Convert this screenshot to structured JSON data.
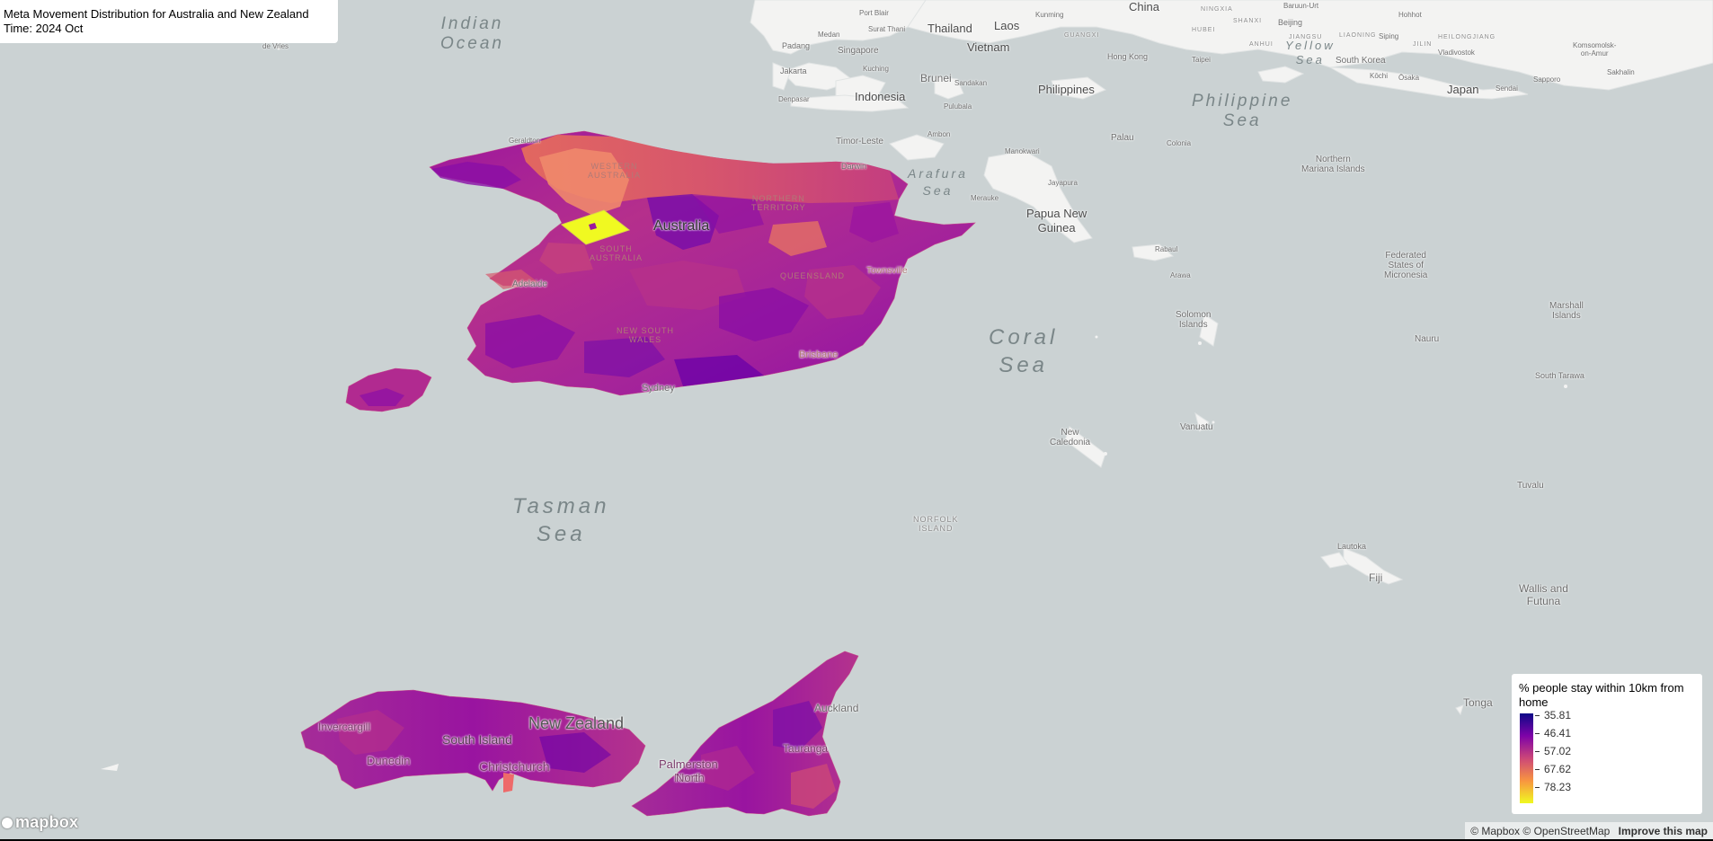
{
  "title_box": {
    "title": "Meta Movement Distribution for Australia and New Zealand",
    "time": "Time: 2024 Oct"
  },
  "legend": {
    "title": "% people stay within 10km from home",
    "ticks": [
      "35.81",
      "46.41",
      "57.02",
      "67.62",
      "78.23"
    ],
    "colors": [
      "#0d0887",
      "#7e03a8",
      "#cc4778",
      "#f89540",
      "#f0f921"
    ]
  },
  "map_labels": {
    "seas": {
      "indian_ocean": "Indian\nOcean",
      "tasman_sea": "Tasman\nSea",
      "coral_sea": "Coral\nSea",
      "philippine_sea": "Philippine\nSea",
      "arafura_sea": "Arafura\nSea",
      "yellow_sea": "Yellow\nSea"
    },
    "countries": {
      "australia": "Australia",
      "new_zealand": "New Zealand",
      "papua_new_guinea": "Papua New\nGuinea",
      "indonesia": "Indonesia",
      "philippines": "Philippines",
      "vietnam": "Vietnam",
      "thailand": "Thailand",
      "laos": "Laos",
      "china": "China",
      "japan": "Japan",
      "south_korea": "South Korea",
      "brunei": "Brunei",
      "singapore": "Singapore",
      "timor_leste": "Timor-Leste",
      "palau": "Palau",
      "northern_mariana": "Northern\nMariana Islands",
      "micronesia": "Federated\nStates of\nMicronesia",
      "marshall": "Marshall\nIslands",
      "nauru": "Nauru",
      "solomon": "Solomon\nIslands",
      "vanuatu": "Vanuatu",
      "new_caledonia": "New\nCaledonia",
      "fiji": "Fiji",
      "tuvalu": "Tuvalu",
      "tonga": "Tonga",
      "wallis": "Wallis and\nFutuna",
      "south_tarawa": "South Tarawa",
      "norfolk": "NORFOLK\nISLAND"
    },
    "cities": {
      "sydney": "Sydney",
      "brisbane": "Brisbane",
      "adelaide": "Adelaide",
      "darwin": "Darwin",
      "townsville": "Townsville",
      "auckland": "Auckland",
      "christchurch": "Christchurch",
      "dunedin": "Dunedin",
      "invercargill": "Invercargill",
      "tauranga": "Tauranga",
      "palmerston_north": "Palmerston\nNorth",
      "hong_kong": "Hong Kong",
      "beijing": "Beijing",
      "jakarta": "Jakarta",
      "kuching": "Kuching",
      "medan": "Medan",
      "padang": "Padang",
      "denpasar": "Denpasar",
      "kunming": "Kunming",
      "manila_region": "Sandakan",
      "ambon": "Ambon",
      "jayapura": "Jayapura",
      "merauke": "Merauke",
      "rabaul": "Rabaul",
      "lautoka": "Lautoka",
      "sapporo": "Sapporo",
      "osaka": "Ōsaka",
      "kochi": "Kōchi",
      "sendai": "Sendai",
      "vladivostok": "Vladivostok",
      "taipei": "Taipei",
      "kupang": "Kupang",
      "pulubala": "Pulubala",
      "manokwari": "Manokwari",
      "honiara": "Arawa",
      "geraldton": "Geraldton",
      "surat_thani": "Surat Thani",
      "port_blair": "Port Blair",
      "de_vries": "de Vries",
      "guam": "Colonia",
      "sakhalin": "Sakhalin",
      "komsomolsk": "Komsomolsk-\non-Amur",
      "baruun_urt": "Baruun-Urt",
      "hohhot": "Hohhot",
      "siping": "Siping"
    },
    "regions": {
      "western_australia": "WESTERN\nAUSTRALIA",
      "south_australia": "SOUTH\nAUSTRALIA",
      "northern_territory": "NORTHERN\nTERRITORY",
      "queensland": "QUEENSLAND",
      "new_south_wales": "NEW SOUTH\nWALES",
      "south_island": "South Island",
      "north_island": "North",
      "ningxia": "NINGXIA",
      "shanxi": "SHANXI",
      "anhui": "ANHUI",
      "hubei": "HUBEI",
      "jiangsu": "JIANGSU",
      "guangxi": "GUANGXI",
      "liaoning": "LIAONING",
      "jilin": "JILIN",
      "heilongjiang": "HEILONGJIANG"
    }
  },
  "attribution": {
    "mapbox": "© Mapbox",
    "osm": "© OpenStreetMap",
    "improve": "Improve this map"
  },
  "logo": {
    "text": "mapbox"
  },
  "icons": {
    "logo_icon": "mapbox-logo-icon"
  }
}
